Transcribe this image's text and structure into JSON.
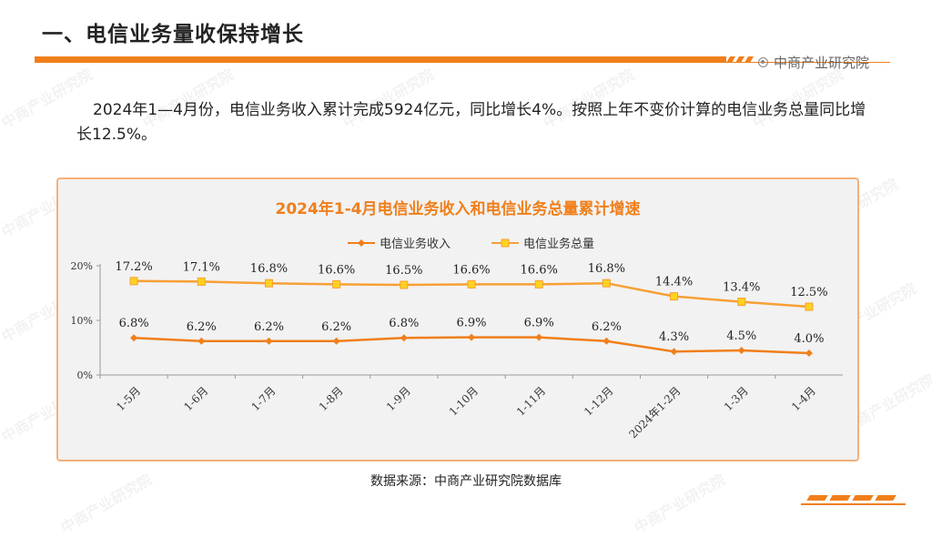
{
  "header": {
    "title": "一、电信业务量收保持增长",
    "brand": "中商产业研究院",
    "accent_color": "#f07f1b",
    "brand_icon": "target-icon"
  },
  "body_text": "2024年1—4月份，电信业务收入累计完成5924亿元，同比增长4%。按照上年不变价计算的电信业务总量同比增长12.5%。",
  "source": "数据来源：中商产业研究院数据库",
  "watermark": "中商产业研究院",
  "chart_data": {
    "type": "line",
    "title": "2024年1-4月电信业务收入和电信业务总量累计增速",
    "categories": [
      "1-5月",
      "1-6月",
      "1-7月",
      "1-8月",
      "1-9月",
      "1-10月",
      "1-11月",
      "1-12月",
      "2024年1-2月",
      "1-3月",
      "1-4月"
    ],
    "series": [
      {
        "name": "电信业务收入",
        "color": "#f07f1b",
        "marker": "diamond",
        "values": [
          6.8,
          6.2,
          6.2,
          6.2,
          6.8,
          6.9,
          6.9,
          6.2,
          4.3,
          4.5,
          4.0
        ],
        "labels": [
          "6.8%",
          "6.2%",
          "6.2%",
          "6.2%",
          "6.8%",
          "6.9%",
          "6.9%",
          "6.2%",
          "4.3%",
          "4.5%",
          "4.0%"
        ]
      },
      {
        "name": "电信业务总量",
        "color": "#f7a035",
        "marker_color": "#ffd21f",
        "marker": "square",
        "values": [
          17.2,
          17.1,
          16.8,
          16.6,
          16.5,
          16.6,
          16.6,
          16.8,
          14.4,
          13.4,
          12.5
        ],
        "labels": [
          "17.2%",
          "17.1%",
          "16.8%",
          "16.6%",
          "16.5%",
          "16.6%",
          "16.6%",
          "16.8%",
          "14.4%",
          "13.4%",
          "12.5%"
        ]
      }
    ],
    "yticks": [
      "0%",
      "10%",
      "20%"
    ],
    "ylim": [
      0,
      20
    ],
    "legend_position": "top-center",
    "grid": false,
    "title_color": "#f07f1b"
  }
}
